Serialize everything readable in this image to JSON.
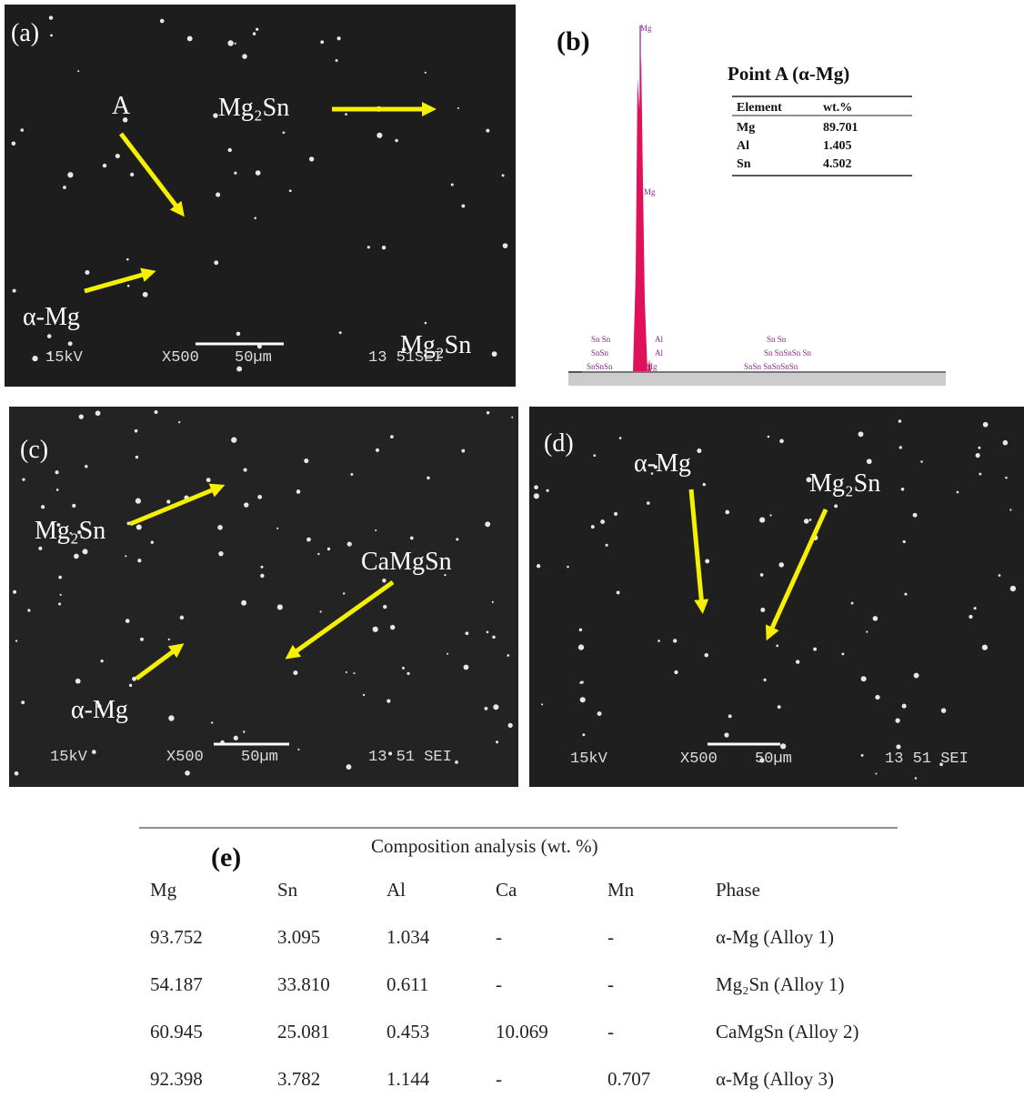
{
  "panels": {
    "a": {
      "label": "(a)",
      "annotations": [
        "A",
        "Mg₂Sn",
        "α-Mg",
        "Mg₂Sn"
      ],
      "stamp": [
        "15kV",
        "X500",
        "50µm",
        "13 51SEI"
      ]
    },
    "b": {
      "label": "(b)",
      "table": {
        "title": "Point A (α-Mg)",
        "header": [
          "Element",
          "wt.%"
        ],
        "rows": [
          [
            "Mg",
            "89.701"
          ],
          [
            "Al",
            "1.405"
          ],
          [
            "Sn",
            "4.502"
          ]
        ]
      },
      "peak_labels": [
        "Mg",
        "Mg",
        "Al",
        "Al",
        "Mg",
        "Sn Sn",
        "SnSn",
        "SnSnSn",
        "Sn Sn",
        "Sn SnSnSn   Sn",
        "SnSn SnSnSnSn"
      ]
    },
    "c": {
      "label": "(c)",
      "annotations": [
        "Mg₂Sn",
        "CaMgSn",
        "α-Mg"
      ],
      "stamp": [
        "15kV",
        "X500",
        "50µm",
        "13 51 SEI"
      ]
    },
    "d": {
      "label": "(d)",
      "annotations": [
        "α-Mg",
        "Mg₂Sn"
      ],
      "stamp": [
        "15kV",
        "X500",
        "50µm",
        "13 51 SEI"
      ]
    }
  },
  "table": {
    "label": "(e)",
    "caption": "Composition analysis (wt. %)",
    "header": [
      "Mg",
      "Sn",
      "Al",
      "Ca",
      "Mn",
      "Phase"
    ],
    "rows": [
      [
        "93.752",
        "3.095",
        "1.034",
        "-",
        "-",
        "α-Mg (Alloy 1)"
      ],
      [
        "54.187",
        "33.810",
        "0.611",
        "-",
        "-",
        "Mg₂Sn (Alloy 1)"
      ],
      [
        "60.945",
        "25.081",
        "0.453",
        "10.069",
        "-",
        "CaMgSn (Alloy 2)"
      ],
      [
        "92.398",
        "3.782",
        "1.144",
        "-",
        "0.707",
        "α-Mg (Alloy 3)"
      ]
    ]
  }
}
